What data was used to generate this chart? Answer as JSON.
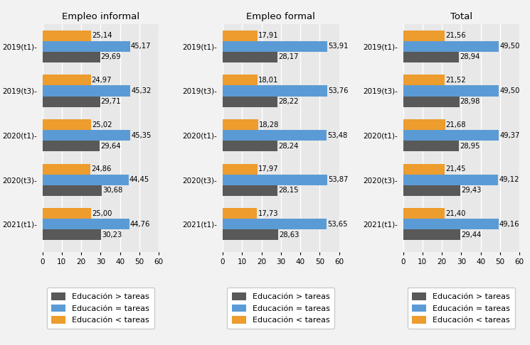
{
  "panels": [
    {
      "title": "Empleo informal",
      "categories": [
        "2019(t1)-",
        "2019(t3)-",
        "2020(t1)-",
        "2020(t3)-",
        "2021(t1)-"
      ],
      "edu_gt": [
        29.69,
        29.71,
        29.64,
        30.68,
        30.23
      ],
      "edu_eq": [
        45.17,
        45.32,
        45.35,
        44.45,
        44.76
      ],
      "edu_lt": [
        25.14,
        24.97,
        25.02,
        24.86,
        25.0
      ]
    },
    {
      "title": "Empleo formal",
      "categories": [
        "2019(t1)-",
        "2019(t3)-",
        "2020(t1)-",
        "2020(t3)-",
        "2021(t1)-"
      ],
      "edu_gt": [
        28.17,
        28.22,
        28.24,
        28.15,
        28.63
      ],
      "edu_eq": [
        53.91,
        53.76,
        53.48,
        53.87,
        53.65
      ],
      "edu_lt": [
        17.91,
        18.01,
        18.28,
        17.97,
        17.73
      ]
    },
    {
      "title": "Total",
      "categories": [
        "2019(t1)-",
        "2019(t3)-",
        "2020(t1)-",
        "2020(t3)-",
        "2021(t1)-"
      ],
      "edu_gt": [
        28.94,
        28.98,
        28.95,
        29.43,
        29.44
      ],
      "edu_eq": [
        49.5,
        49.5,
        49.37,
        49.12,
        49.16
      ],
      "edu_lt": [
        21.56,
        21.52,
        21.68,
        21.45,
        21.4
      ]
    }
  ],
  "color_gt": "#595959",
  "color_eq": "#5b9bd5",
  "color_lt": "#ed9c2e",
  "bg_color": "#e8e8e8",
  "fig_bg": "#f2f2f2",
  "xlim": [
    0,
    60
  ],
  "xticks": [
    0,
    10,
    20,
    30,
    40,
    50,
    60
  ],
  "legend_labels": [
    "Educación > tareas",
    "Educación = tareas",
    "Educación < tareas"
  ],
  "bar_height": 0.24,
  "bar_gap": 0.0,
  "label_fontsize": 7.2,
  "title_fontsize": 9.5,
  "tick_fontsize": 7.5,
  "legend_fontsize": 8.0
}
